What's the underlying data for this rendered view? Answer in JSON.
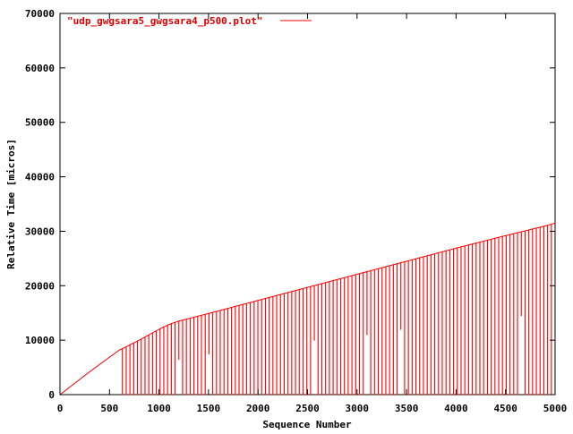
{
  "chart_data": {
    "type": "line",
    "title": "",
    "xlabel": "Sequence Number",
    "ylabel": "Relative Time [micros]",
    "xlim": [
      0,
      5000
    ],
    "ylim": [
      0,
      70000
    ],
    "x_ticks": [
      0,
      500,
      1000,
      1500,
      2000,
      2500,
      3000,
      3500,
      4000,
      4500,
      5000
    ],
    "y_ticks": [
      0,
      10000,
      20000,
      30000,
      40000,
      50000,
      60000,
      70000
    ],
    "grid": false,
    "legend_position": "top-left",
    "series": [
      {
        "name": "\"udp_gwgsara5_gwgsara4_p500.plot\"",
        "color": "#ff0000",
        "upper_envelope": {
          "x": [
            0,
            300,
            600,
            650,
            700,
            800,
            900,
            1000,
            1100,
            1150,
            1200,
            1500,
            2000,
            2500,
            3000,
            3500,
            4000,
            4500,
            4950,
            5000
          ],
          "y": [
            0,
            4200,
            8200,
            8600,
            9100,
            10000,
            11000,
            12000,
            12900,
            13200,
            13500,
            14900,
            17300,
            19700,
            22100,
            24500,
            26900,
            29200,
            31200,
            31500
          ]
        },
        "oscillation_start_x": 630,
        "oscillation_period": 38,
        "shallow_dips": [
          {
            "x": 1200,
            "y": 6500
          },
          {
            "x": 1500,
            "y": 7500
          },
          {
            "x": 2550,
            "y": 10000
          },
          {
            "x": 3100,
            "y": 11000
          },
          {
            "x": 3450,
            "y": 12000
          },
          {
            "x": 4650,
            "y": 14500
          }
        ]
      }
    ]
  }
}
